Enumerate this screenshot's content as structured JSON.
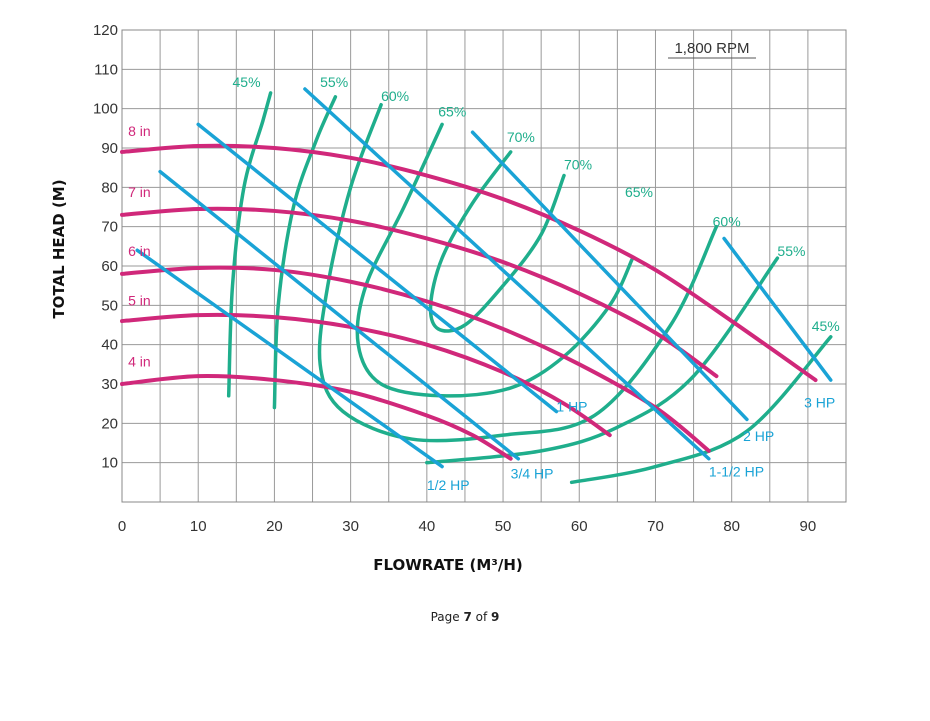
{
  "chart_data": {
    "type": "line",
    "title": "",
    "annotation": "1,800 RPM",
    "xlabel": "FLOWRATE (M³/H)",
    "ylabel": "TOTAL HEAD (M)",
    "xlim": [
      0,
      95
    ],
    "ylim": [
      0,
      120
    ],
    "x_ticks": [
      "0",
      "10",
      "20",
      "30",
      "40",
      "50",
      "60",
      "70",
      "80",
      "90"
    ],
    "y_ticks": [
      "10",
      "20",
      "30",
      "40",
      "50",
      "60",
      "70",
      "80",
      "90",
      "100",
      "110",
      "120"
    ],
    "grid": true,
    "series": [
      {
        "name": "8 in",
        "group": "impeller",
        "color": "#d0287a",
        "points": [
          [
            0,
            89
          ],
          [
            10,
            90.5
          ],
          [
            20,
            90
          ],
          [
            30,
            87.5
          ],
          [
            40,
            83
          ],
          [
            50,
            77
          ],
          [
            60,
            69
          ],
          [
            70,
            59
          ],
          [
            80,
            46
          ],
          [
            91,
            31
          ]
        ]
      },
      {
        "name": "7 in",
        "group": "impeller",
        "color": "#d0287a",
        "points": [
          [
            0,
            73
          ],
          [
            10,
            74.5
          ],
          [
            20,
            74
          ],
          [
            30,
            71.5
          ],
          [
            40,
            67
          ],
          [
            50,
            61
          ],
          [
            60,
            53
          ],
          [
            70,
            43
          ],
          [
            78,
            32
          ]
        ]
      },
      {
        "name": "6 in",
        "group": "impeller",
        "color": "#d0287a",
        "points": [
          [
            0,
            58
          ],
          [
            10,
            59.5
          ],
          [
            20,
            59
          ],
          [
            30,
            56
          ],
          [
            40,
            51
          ],
          [
            50,
            44
          ],
          [
            60,
            35
          ],
          [
            70,
            24
          ],
          [
            77,
            13
          ]
        ]
      },
      {
        "name": "5 in",
        "group": "impeller",
        "color": "#d0287a",
        "points": [
          [
            0,
            46
          ],
          [
            10,
            47.5
          ],
          [
            20,
            47
          ],
          [
            30,
            44.5
          ],
          [
            40,
            40
          ],
          [
            50,
            33
          ],
          [
            58,
            25
          ],
          [
            64,
            17
          ]
        ]
      },
      {
        "name": "4 in",
        "group": "impeller",
        "color": "#d0287a",
        "points": [
          [
            0,
            30
          ],
          [
            10,
            32
          ],
          [
            20,
            31
          ],
          [
            30,
            28
          ],
          [
            40,
            22
          ],
          [
            46,
            17
          ],
          [
            51,
            11
          ]
        ]
      },
      {
        "name": "1/2 HP",
        "group": "power",
        "color": "#1aa3d6",
        "points": [
          [
            2,
            64
          ],
          [
            42,
            9
          ]
        ]
      },
      {
        "name": "3/4 HP",
        "group": "power",
        "color": "#1aa3d6",
        "points": [
          [
            5,
            84
          ],
          [
            52,
            11
          ]
        ]
      },
      {
        "name": "1 HP",
        "group": "power",
        "color": "#1aa3d6",
        "points": [
          [
            10,
            96
          ],
          [
            57,
            23
          ]
        ]
      },
      {
        "name": "1-1/2 HP",
        "group": "power",
        "color": "#1aa3d6",
        "points": [
          [
            24,
            105
          ],
          [
            77,
            11
          ]
        ]
      },
      {
        "name": "2 HP",
        "group": "power",
        "color": "#1aa3d6",
        "points": [
          [
            46,
            94
          ],
          [
            82,
            21
          ]
        ]
      },
      {
        "name": "3 HP",
        "group": "power",
        "color": "#1aa3d6",
        "points": [
          [
            79,
            67
          ],
          [
            93,
            31
          ]
        ]
      },
      {
        "name": "45%",
        "group": "efficiency",
        "color": "#1fae8c",
        "points": [
          [
            14,
            27
          ],
          [
            14.5,
            55
          ],
          [
            16,
            80
          ],
          [
            18.5,
            97
          ],
          [
            19.5,
            104
          ]
        ]
      },
      {
        "name": "55%",
        "group": "efficiency",
        "color": "#1fae8c",
        "points": [
          [
            20,
            24
          ],
          [
            20.5,
            50
          ],
          [
            22.5,
            75
          ],
          [
            25.5,
            92
          ],
          [
            28,
            103
          ]
        ]
      },
      {
        "name": "60%",
        "group": "efficiency",
        "color": "#1fae8c",
        "points": [
          [
            34,
            101
          ],
          [
            30,
            80
          ],
          [
            27,
            55
          ],
          [
            26,
            35
          ],
          [
            29,
            23
          ],
          [
            38,
            16
          ],
          [
            50,
            17
          ],
          [
            62,
            22
          ],
          [
            72,
            45
          ],
          [
            78,
            70
          ]
        ]
      },
      {
        "name": "65%",
        "group": "efficiency",
        "color": "#1fae8c",
        "points": [
          [
            42,
            96
          ],
          [
            37,
            75
          ],
          [
            32,
            55
          ],
          [
            31,
            40
          ],
          [
            34,
            30
          ],
          [
            42,
            27
          ],
          [
            51,
            29
          ],
          [
            58,
            37
          ],
          [
            64,
            50
          ],
          [
            67,
            62
          ]
        ]
      },
      {
        "name": "70%",
        "group": "efficiency",
        "color": "#1fae8c",
        "points": [
          [
            51,
            89
          ],
          [
            46,
            76
          ],
          [
            42,
            62
          ],
          [
            40.5,
            50
          ],
          [
            41.5,
            44
          ],
          [
            45,
            45
          ],
          [
            50,
            55
          ],
          [
            55,
            68
          ],
          [
            58,
            83
          ]
        ]
      },
      {
        "name": "55% (right)",
        "group": "efficiency",
        "color": "#1fae8c",
        "points": [
          [
            40,
            10
          ],
          [
            55,
            13
          ],
          [
            65,
            19
          ],
          [
            75,
            32
          ],
          [
            86,
            62
          ]
        ]
      },
      {
        "name": "45% (right)",
        "group": "efficiency",
        "color": "#1fae8c",
        "points": [
          [
            59,
            5
          ],
          [
            70,
            9
          ],
          [
            82,
            18
          ],
          [
            93,
            42
          ]
        ]
      }
    ],
    "curve_labels": [
      {
        "text": "8 in",
        "x": 0.8,
        "y": 93,
        "color": "#d0287a"
      },
      {
        "text": "7 in",
        "x": 0.8,
        "y": 77.5,
        "color": "#d0287a"
      },
      {
        "text": "6 in",
        "x": 0.8,
        "y": 62.5,
        "color": "#d0287a"
      },
      {
        "text": "5 in",
        "x": 0.8,
        "y": 50,
        "color": "#d0287a"
      },
      {
        "text": "4 in",
        "x": 0.8,
        "y": 34.5,
        "color": "#d0287a"
      },
      {
        "text": "1/2 HP",
        "x": 40,
        "y": 3,
        "color": "#1aa3d6"
      },
      {
        "text": "3/4 HP",
        "x": 51,
        "y": 6,
        "color": "#1aa3d6"
      },
      {
        "text": "1 HP",
        "x": 57,
        "y": 23,
        "color": "#1aa3d6"
      },
      {
        "text": "1-1/2 HP",
        "x": 77,
        "y": 6.5,
        "color": "#1aa3d6"
      },
      {
        "text": "2 HP",
        "x": 81.5,
        "y": 15.5,
        "color": "#1aa3d6"
      },
      {
        "text": "3 HP",
        "x": 89.5,
        "y": 24,
        "color": "#1aa3d6"
      },
      {
        "text": "45%",
        "x": 14.5,
        "y": 105.5,
        "color": "#1fae8c"
      },
      {
        "text": "55%",
        "x": 26,
        "y": 105.5,
        "color": "#1fae8c"
      },
      {
        "text": "60%",
        "x": 34,
        "y": 102,
        "color": "#1fae8c"
      },
      {
        "text": "65%",
        "x": 41.5,
        "y": 98,
        "color": "#1fae8c"
      },
      {
        "text": "70%",
        "x": 50.5,
        "y": 91.5,
        "color": "#1fae8c"
      },
      {
        "text": "70%",
        "x": 58,
        "y": 84.5,
        "color": "#1fae8c"
      },
      {
        "text": "65%",
        "x": 66,
        "y": 77.5,
        "color": "#1fae8c"
      },
      {
        "text": "60%",
        "x": 77.5,
        "y": 70,
        "color": "#1fae8c"
      },
      {
        "text": "55%",
        "x": 86,
        "y": 62.5,
        "color": "#1fae8c"
      },
      {
        "text": "45%",
        "x": 90.5,
        "y": 43.5,
        "color": "#1fae8c"
      }
    ]
  },
  "page": {
    "prefix": "Page ",
    "current": "7",
    "middle": " of ",
    "total": "9"
  }
}
